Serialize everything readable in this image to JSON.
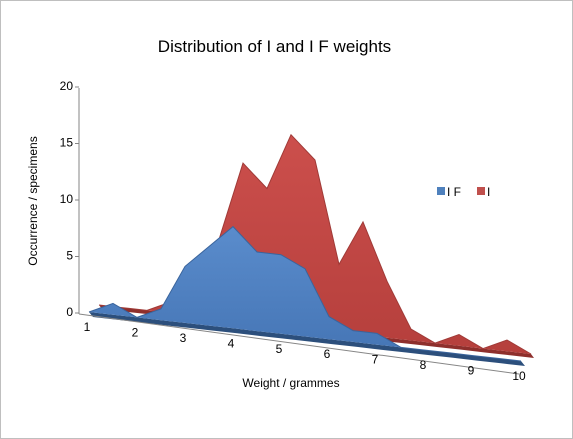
{
  "chart_data": {
    "type": "area",
    "title": "Distribution of I and I F weights",
    "xlabel": "Weight / grammes",
    "ylabel": "Occurrence  / specimens",
    "x": [
      1,
      1.5,
      2,
      2.5,
      3,
      3.5,
      4,
      4.5,
      5,
      5.5,
      6,
      6.5,
      7,
      7.5,
      8,
      8.5,
      9,
      9.5,
      10
    ],
    "x_ticks": [
      1,
      2,
      3,
      4,
      5,
      6,
      7,
      8,
      9,
      10
    ],
    "y_ticks": [
      0,
      5,
      10,
      15,
      20
    ],
    "ylim": [
      0,
      20
    ],
    "legend_position": "right",
    "grid": false,
    "series": [
      {
        "name": "I F",
        "color": "#4f81bd",
        "values": [
          0,
          1,
          0,
          1,
          5,
          7,
          9,
          7,
          7,
          6,
          2,
          1,
          1,
          0,
          0,
          0,
          0,
          0,
          0
        ]
      },
      {
        "name": "I",
        "color": "#c0504d",
        "values": [
          0,
          0,
          0,
          1,
          3,
          7,
          14,
          12,
          17,
          15,
          6,
          10,
          5,
          1,
          0,
          1,
          0,
          1,
          0
        ]
      }
    ]
  }
}
